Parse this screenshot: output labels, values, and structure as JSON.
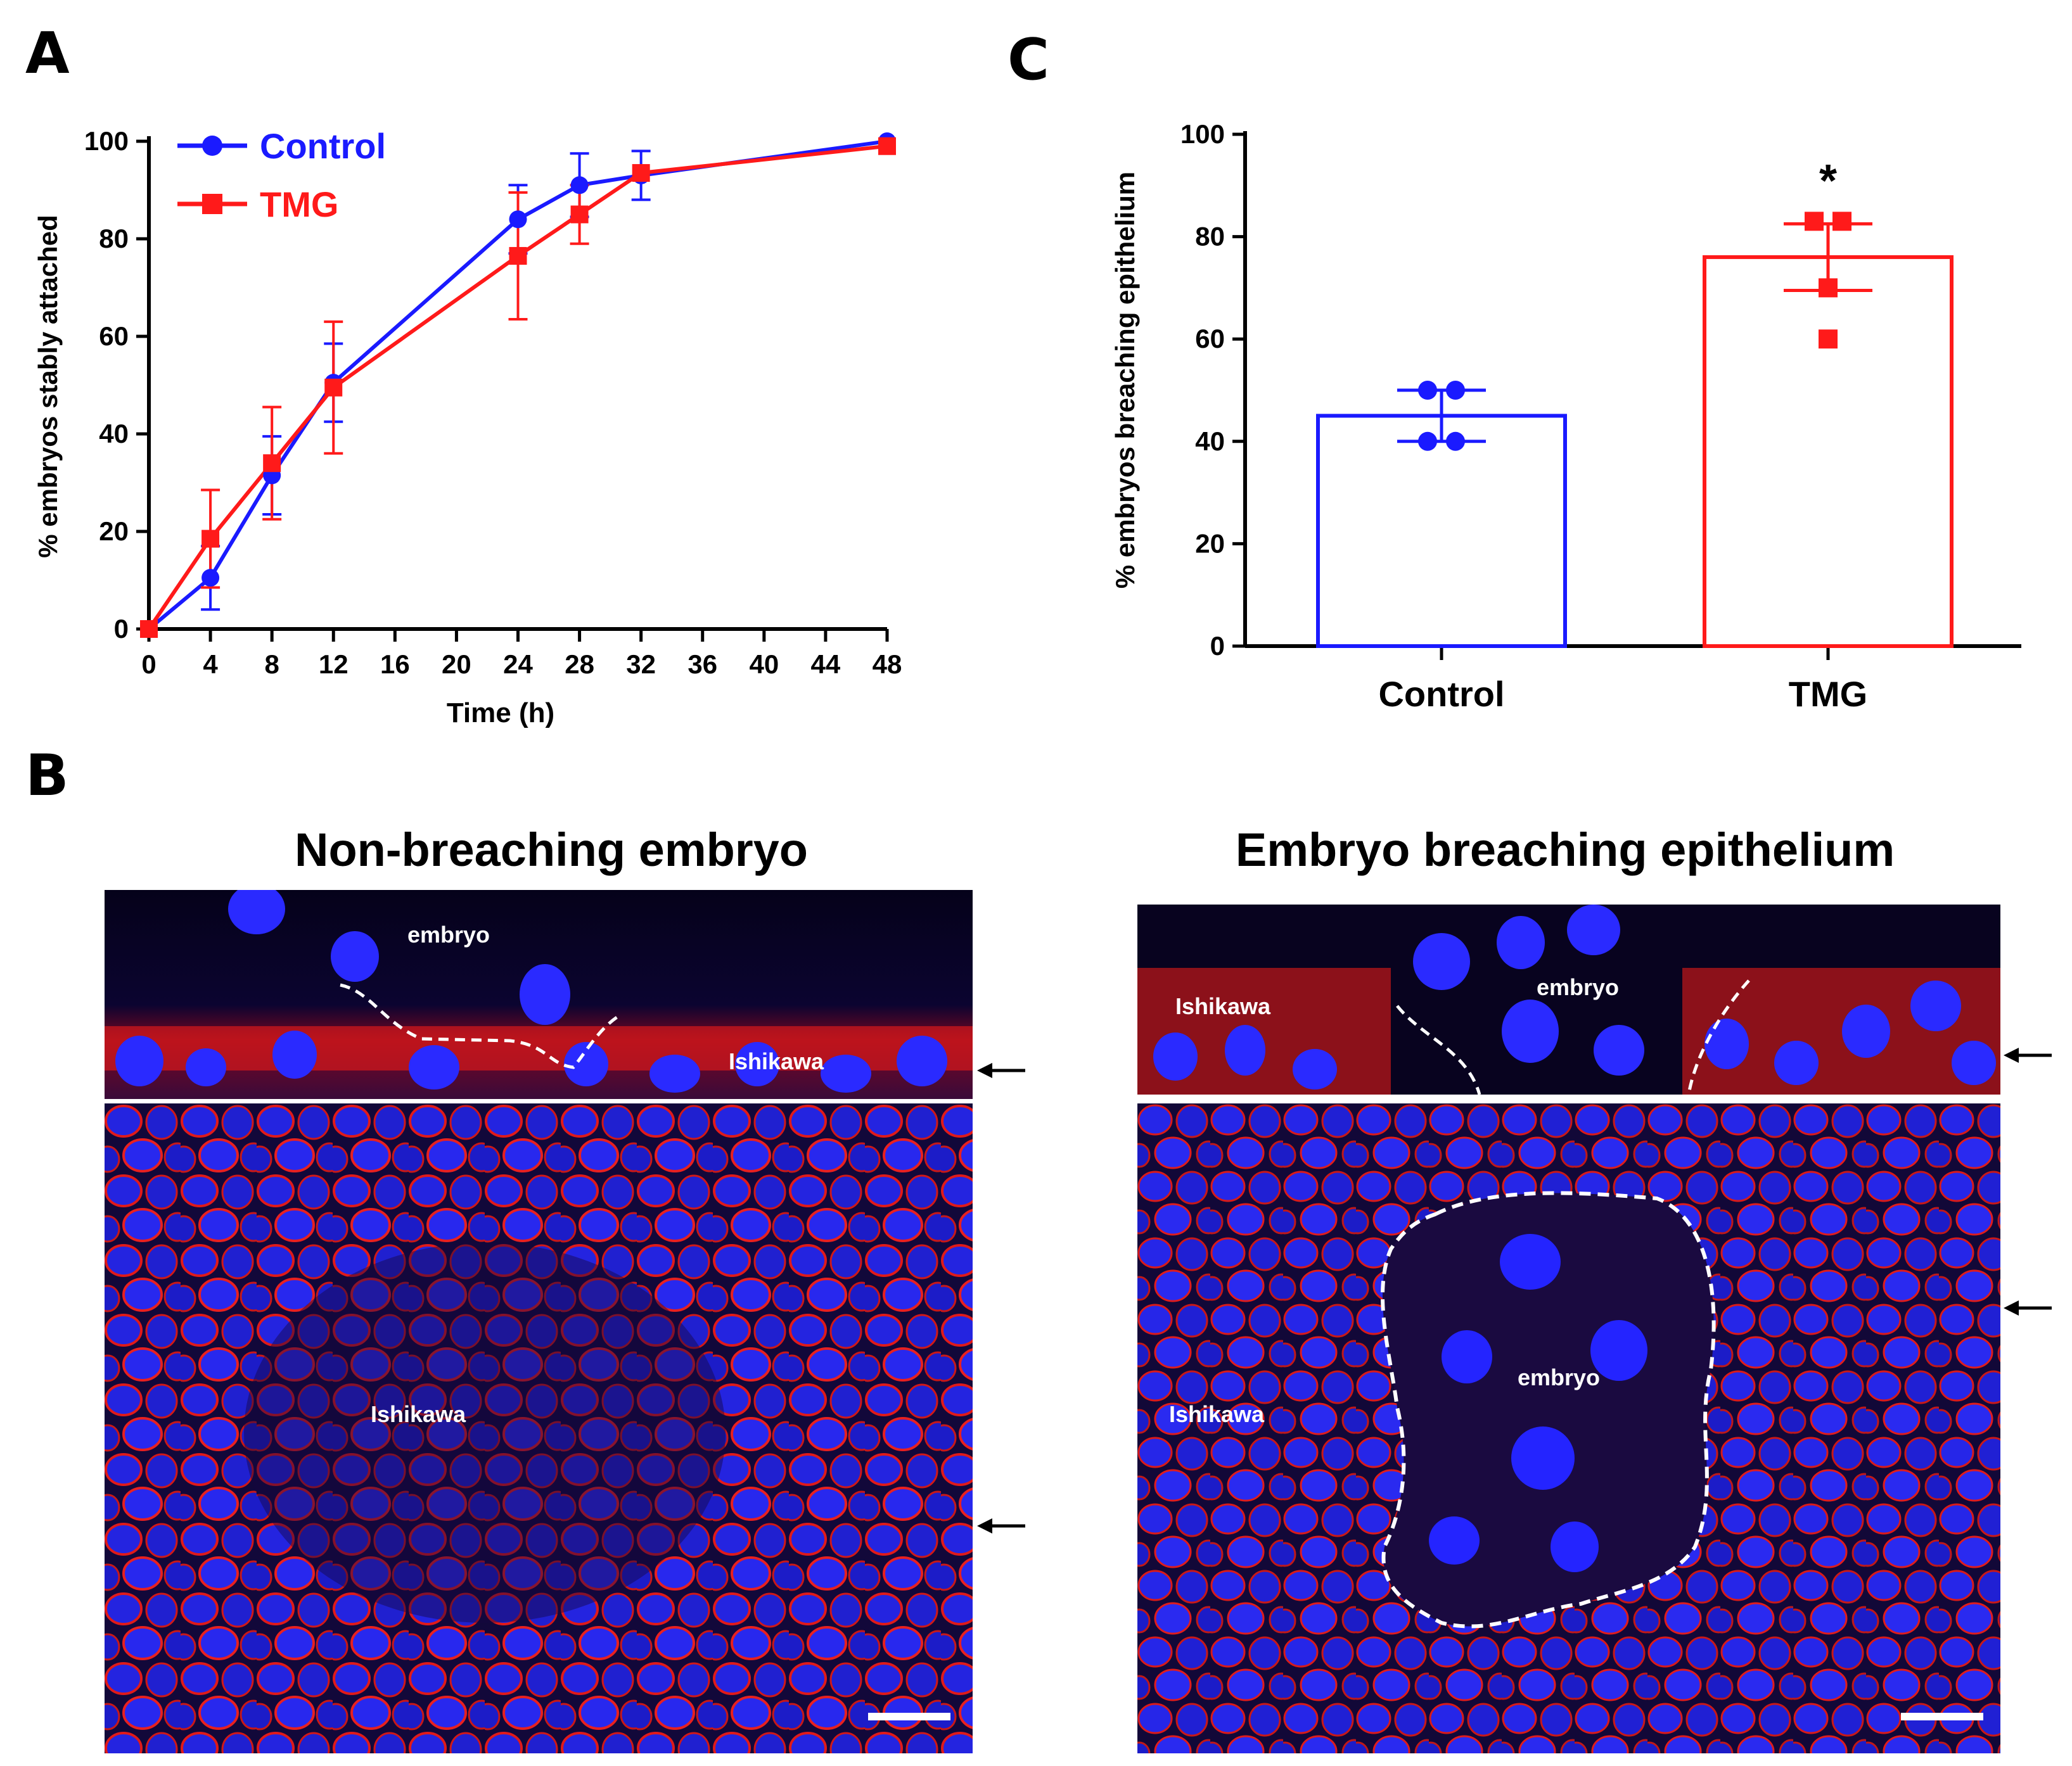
{
  "panels": {
    "a_letter": "A",
    "b_letter": "B",
    "c_letter": "C"
  },
  "chart_data": [
    {
      "panel": "A",
      "type": "line",
      "xlabel": "Time (h)",
      "ylabel": "% embryos stably attached",
      "xlim": [
        0,
        48
      ],
      "ylim": [
        0,
        100
      ],
      "xticks": [
        0,
        4,
        8,
        12,
        16,
        20,
        24,
        28,
        32,
        36,
        40,
        44,
        48
      ],
      "yticks": [
        0,
        20,
        40,
        60,
        80,
        100
      ],
      "legend_position": "top-left",
      "grid": false,
      "series": [
        {
          "name": "Control",
          "color": "#1a1aff",
          "marker": "circle",
          "x": [
            0,
            4,
            8,
            12,
            24,
            28,
            32,
            48
          ],
          "y": [
            0,
            10.5,
            31.5,
            50.5,
            84,
            91,
            93,
            100
          ],
          "err": [
            0,
            6.5,
            8,
            8,
            7,
            6.5,
            5,
            0
          ]
        },
        {
          "name": "TMG",
          "color": "#ff1a1a",
          "marker": "square",
          "x": [
            0,
            4,
            8,
            12,
            24,
            28,
            32,
            48
          ],
          "y": [
            0,
            18.5,
            34,
            49.5,
            76.5,
            85,
            93.5,
            99
          ],
          "err": [
            0,
            10,
            11.5,
            13.5,
            13,
            6,
            0,
            0
          ]
        }
      ]
    },
    {
      "panel": "C",
      "type": "bar",
      "ylabel": "% embryos breaching epithelium",
      "ylim": [
        0,
        100
      ],
      "yticks": [
        0,
        20,
        40,
        60,
        80,
        100
      ],
      "grid": false,
      "categories": [
        "Control",
        "TMG"
      ],
      "values": [
        45,
        76
      ],
      "sd": [
        5,
        6.5
      ],
      "colors": [
        "#1a1aff",
        "#ff1a1a"
      ],
      "points": [
        [
          50,
          50,
          40,
          40
        ],
        [
          83,
          83,
          70,
          60
        ]
      ],
      "annotations": [
        {
          "category": "TMG",
          "text": "*"
        }
      ]
    }
  ],
  "panel_b": {
    "left_title": "Non-breaching embryo",
    "right_title": "Embryo breaching epithelium",
    "left_labels": {
      "embryo": "embryo",
      "ishikawa_top": "Ishikawa",
      "ishikawa_bottom": "Ishikawa"
    },
    "right_labels": {
      "ishikawa_top": "Ishikawa",
      "embryo_top": "embryo",
      "embryo_bottom": "embryo",
      "ishikawa_bottom": "Ishikawa"
    },
    "colors": {
      "stain_red": "#ff2020",
      "stain_blue": "#2424ff",
      "background": "#05021a"
    }
  }
}
